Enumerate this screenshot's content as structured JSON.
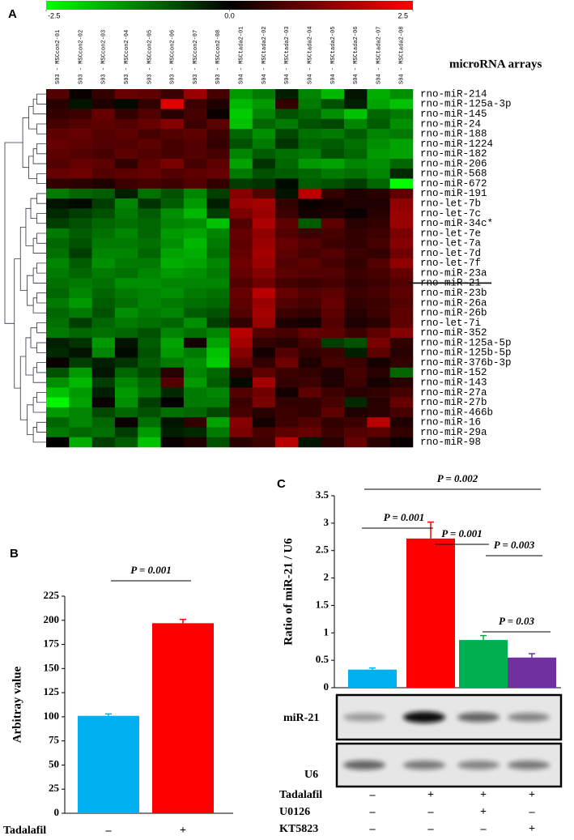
{
  "chart_data": [
    {
      "type": "heatmap",
      "panel": "A",
      "title": "microRNA arrays",
      "clim": [
        -2.5,
        2.5
      ],
      "cticks": [
        -2.5,
        {
          "value": 0,
          "label": "0.0"
        },
        2.5
      ],
      "colormap": [
        "#00ff00",
        "#000000",
        "#ff0000"
      ],
      "columns": [
        "S03 - MSCcon2-01",
        "S03 - MSCcon2-02",
        "S03 - MSCcon2-03",
        "S03 - MSCcon2-04",
        "S03 - MSCcon2-05",
        "S03 - MSCcon2-06",
        "S03 - MSCcon2-07",
        "S03 - MSCcon2-08",
        "S04 - MSCtada2-01",
        "S04 - MSCtada2-02",
        "S04 - MSCtada2-03",
        "S04 - MSCtada2-04",
        "S04 - MSCtada2-05",
        "S04 - MSCtada2-06",
        "S04 - MSCtada2-07",
        "S04 - MSCtada2-08"
      ],
      "rows": [
        "rno-miR-214",
        "rno-miR-125a-3p",
        "rno-miR-145",
        "rno-miR-24",
        "rno-miR-188",
        "rno-miR-1224",
        "rno-miR-182",
        "rno-miR-206",
        "rno-miR-568",
        "rno-miR-672",
        "rno-miR-191",
        "rno-let-7b",
        "rno-let-7c",
        "rno-miR-34c*",
        "rno-let-7e",
        "rno-let-7a",
        "rno-let-7d",
        "rno-let-7f",
        "rno-miR-23a",
        "rno-miR-21",
        "rno-miR-23b",
        "rno-miR-26a",
        "rno-miR-26b",
        "rno-let-7i",
        "rno-miR-352",
        "rno-miR-125a-5p",
        "rno-miR-125b-5p",
        "rno-miR-376b-3p",
        "rno-miR-152",
        "rno-miR-143",
        "rno-miR-27a",
        "rno-miR-27b",
        "rno-miR-466b",
        "rno-miR-16",
        "rno-miR-29a",
        "rno-miR-98"
      ],
      "values": [
        [
          0.8,
          0.1,
          0.5,
          1.0,
          0.9,
          0.6,
          1.5,
          0.7,
          -1.5,
          -1.2,
          -0.3,
          -1.3,
          -1.8,
          -0.2,
          -1.7,
          -1.4
        ],
        [
          0.4,
          -0.2,
          0.3,
          -0.1,
          0.5,
          2.2,
          0.6,
          0.3,
          -1.8,
          -1.5,
          0.5,
          -1.2,
          -0.8,
          -0.3,
          -1.6,
          -1.9
        ],
        [
          0.5,
          0.6,
          1.0,
          0.5,
          0.8,
          0.4,
          0.7,
          0.1,
          -2.0,
          -1.3,
          -0.8,
          -1.0,
          -1.4,
          -1.9,
          -1.0,
          -1.2
        ],
        [
          0.7,
          0.8,
          0.9,
          0.8,
          1.0,
          1.3,
          0.6,
          0.9,
          -1.9,
          -1.0,
          -1.2,
          -0.8,
          -0.7,
          -1.3,
          -0.9,
          -1.4
        ],
        [
          0.9,
          1.0,
          0.8,
          0.9,
          0.7,
          0.8,
          0.9,
          0.6,
          -1.0,
          -1.4,
          -0.7,
          -1.1,
          -1.2,
          -0.9,
          -1.3,
          -1.2
        ],
        [
          1.0,
          0.9,
          0.8,
          0.8,
          0.9,
          0.7,
          0.8,
          0.5,
          -0.8,
          -1.2,
          -0.5,
          -1.0,
          -0.9,
          -1.1,
          -1.4,
          -1.6
        ],
        [
          0.9,
          0.8,
          0.7,
          0.9,
          0.8,
          0.7,
          0.8,
          0.7,
          -1.3,
          -0.9,
          -1.1,
          -1.2,
          -0.8,
          -1.0,
          -1.5,
          -1.6
        ],
        [
          0.8,
          1.0,
          0.9,
          0.5,
          0.9,
          1.2,
          0.7,
          0.9,
          -1.6,
          -0.5,
          -1.0,
          -1.5,
          -1.6,
          -1.3,
          -1.4,
          -1.0
        ],
        [
          1.0,
          1.1,
          0.8,
          0.9,
          1.0,
          0.8,
          0.9,
          1.0,
          -1.2,
          -0.8,
          -0.9,
          -1.0,
          -1.2,
          -1.1,
          -1.3,
          -0.4
        ],
        [
          0.5,
          0.4,
          0.3,
          0.6,
          0.7,
          0.6,
          0.8,
          0.5,
          -0.6,
          -0.5,
          -0.1,
          -0.9,
          -0.8,
          -0.6,
          -1.0,
          -2.5
        ],
        [
          -1.2,
          -1.0,
          -0.9,
          -0.3,
          -1.1,
          -0.8,
          -1.3,
          -0.6,
          1.3,
          0.8,
          -0.2,
          1.8,
          0.5,
          0.3,
          0.4,
          0.9
        ],
        [
          -0.2,
          -0.1,
          -0.6,
          -1.3,
          -0.5,
          -0.9,
          -1.5,
          -0.3,
          1.5,
          1.6,
          0.5,
          0.1,
          0.2,
          0.3,
          0.3,
          1.4
        ],
        [
          -0.4,
          -0.6,
          -0.8,
          -1.2,
          -0.9,
          -1.4,
          -1.8,
          -0.6,
          1.2,
          1.5,
          0.6,
          0.2,
          0.3,
          0.1,
          0.4,
          1.5
        ],
        [
          -0.6,
          -0.8,
          -1.0,
          -1.1,
          -1.0,
          -1.3,
          -1.4,
          -1.9,
          0.8,
          1.7,
          0.9,
          -0.9,
          0.9,
          0.4,
          0.5,
          1.5
        ],
        [
          -1.2,
          -0.9,
          -1.1,
          -1.3,
          -1.0,
          -1.5,
          -1.6,
          -1.3,
          1.0,
          1.4,
          0.8,
          0.6,
          0.7,
          0.5,
          0.6,
          1.2
        ],
        [
          -1.0,
          -0.8,
          -1.2,
          -1.2,
          -1.1,
          -1.4,
          -1.8,
          -1.2,
          0.9,
          1.5,
          1.0,
          0.8,
          0.6,
          0.5,
          0.7,
          1.3
        ],
        [
          -1.1,
          -0.6,
          -1.3,
          -1.3,
          -1.0,
          -1.6,
          -1.7,
          -1.1,
          1.0,
          1.6,
          0.9,
          0.7,
          0.8,
          0.6,
          0.5,
          1.1
        ],
        [
          -1.3,
          -0.9,
          -1.4,
          -1.2,
          -1.2,
          -1.7,
          -1.6,
          -1.3,
          1.1,
          1.5,
          0.8,
          0.9,
          0.7,
          0.5,
          0.8,
          1.4
        ],
        [
          -1.2,
          -1.0,
          -1.2,
          -1.1,
          -1.3,
          -1.5,
          -1.4,
          -1.2,
          1.0,
          1.3,
          0.9,
          0.8,
          0.8,
          0.6,
          0.7,
          1.0
        ],
        [
          -1.1,
          -1.2,
          -1.1,
          -1.4,
          -1.4,
          -1.3,
          -1.3,
          -1.3,
          0.8,
          1.1,
          0.7,
          0.6,
          0.7,
          0.5,
          0.6,
          0.8
        ],
        [
          -1.0,
          -1.3,
          -1.0,
          -1.2,
          -1.3,
          -1.4,
          -1.2,
          -1.1,
          1.0,
          1.8,
          1.0,
          0.8,
          0.9,
          0.6,
          0.7,
          0.9
        ],
        [
          -1.2,
          -1.5,
          -0.9,
          -1.1,
          -1.3,
          -1.2,
          -1.1,
          -1.0,
          0.9,
          1.5,
          0.8,
          0.7,
          1.0,
          0.5,
          0.6,
          0.8
        ],
        [
          -1.0,
          -1.2,
          -0.8,
          -1.4,
          -1.2,
          -1.3,
          -0.9,
          -0.8,
          0.8,
          1.6,
          0.6,
          0.5,
          0.9,
          0.4,
          0.6,
          0.9
        ],
        [
          -1.1,
          -0.6,
          -1.0,
          -1.2,
          -1.1,
          -1.0,
          -1.4,
          -0.6,
          0.5,
          1.5,
          0.3,
          0.2,
          0.8,
          0.3,
          0.4,
          0.9
        ],
        [
          -1.2,
          -1.0,
          -1.1,
          -1.0,
          -0.8,
          -1.3,
          -1.1,
          -1.3,
          1.8,
          0.8,
          0.7,
          1.0,
          0.9,
          0.6,
          0.9,
          1.3
        ],
        [
          -0.3,
          -0.5,
          -1.5,
          -0.2,
          -0.9,
          -1.6,
          0.2,
          -1.6,
          1.6,
          0.5,
          0.4,
          0.7,
          -0.6,
          -0.8,
          1.2,
          0.5
        ],
        [
          -0.4,
          -0.2,
          -1.3,
          -0.1,
          -0.8,
          -1.5,
          -1.2,
          -1.9,
          1.3,
          0.2,
          0.8,
          0.5,
          0.6,
          -0.3,
          0.9,
          0.4
        ],
        [
          0.1,
          -0.6,
          -0.3,
          -0.5,
          -0.9,
          -1.2,
          -1.4,
          -2.0,
          1.0,
          0.5,
          1.1,
          0.3,
          0.7,
          0.6,
          0.2,
          0.5
        ],
        [
          -0.8,
          -1.5,
          -0.2,
          -1.0,
          -0.7,
          0.4,
          -1.3,
          -1.0,
          0.4,
          0.9,
          0.6,
          0.5,
          0.3,
          0.7,
          0.4,
          -1.0
        ],
        [
          -1.4,
          -1.8,
          -0.6,
          -1.3,
          -1.0,
          0.8,
          -1.5,
          -0.9,
          -0.1,
          1.6,
          0.5,
          0.6,
          0.3,
          0.6,
          0.2,
          0.4
        ],
        [
          -1.9,
          -1.5,
          -0.3,
          -1.5,
          -1.1,
          -0.4,
          -1.2,
          -1.3,
          0.8,
          1.1,
          0.2,
          0.9,
          0.6,
          0.4,
          0.5,
          0.7
        ],
        [
          -2.4,
          -1.6,
          0.1,
          -1.4,
          -0.6,
          0.0,
          -1.2,
          -1.2,
          0.6,
          1.2,
          0.5,
          0.5,
          0.7,
          -0.4,
          0.4,
          1.0
        ],
        [
          -1.5,
          -1.3,
          -0.7,
          -1.0,
          -0.8,
          -1.1,
          -1.0,
          -0.7,
          0.7,
          0.4,
          0.6,
          0.5,
          0.9,
          0.3,
          0.4,
          0.7
        ],
        [
          -1.0,
          -1.3,
          -1.0,
          0.1,
          -1.1,
          -0.2,
          0.5,
          -1.6,
          1.3,
          0.2,
          0.6,
          0.8,
          0.5,
          0.6,
          1.8,
          0.3
        ],
        [
          -1.2,
          -1.0,
          -1.1,
          -0.6,
          -1.5,
          -0.3,
          -0.4,
          -1.2,
          1.2,
          0.7,
          0.9,
          1.0,
          0.6,
          0.8,
          0.9,
          0.5
        ],
        [
          0.0,
          -1.7,
          -0.6,
          -0.9,
          -1.9,
          0.1,
          0.3,
          -0.8,
          0.4,
          0.6,
          1.8,
          -0.2,
          0.4,
          1.0,
          0.4,
          0.1
        ]
      ]
    },
    {
      "type": "bar",
      "panel": "B",
      "ylabel": "Arbitray value",
      "xlabel": "Tadalafil",
      "categories": [
        "–",
        "+"
      ],
      "values": [
        101,
        197
      ],
      "errors": [
        2,
        4
      ],
      "colors": [
        "#00b0f0",
        "#ff0000"
      ],
      "ylim": [
        0,
        225
      ],
      "yticks": [
        0,
        25,
        50,
        75,
        100,
        125,
        150,
        175,
        200,
        225
      ],
      "annotations": [
        "P = 0.001"
      ]
    },
    {
      "type": "bar",
      "panel": "C",
      "ylabel": "Ratio of miR-21 / U6",
      "values": [
        0.33,
        2.72,
        0.87,
        0.55
      ],
      "errors": [
        0.03,
        0.3,
        0.08,
        0.07
      ],
      "colors": [
        "#00b0f0",
        "#ff0000",
        "#00b050",
        "#7030a0"
      ],
      "ylim": [
        0,
        3.5
      ],
      "yticks": [
        0,
        0.5,
        1,
        1.5,
        2,
        2.5,
        3,
        3.5
      ],
      "annotations": [
        "P = 0.002",
        "P = 0.001",
        "P = 0.001",
        "P = 0.003",
        "P = 0.03"
      ],
      "blots": [
        "miR-21",
        "U6"
      ],
      "treatments": [
        {
          "name": "Tadalafil",
          "values": [
            "–",
            "+",
            "+",
            "+"
          ]
        },
        {
          "name": "U0126",
          "values": [
            "–",
            "–",
            "+",
            "–"
          ]
        },
        {
          "name": "KT5823",
          "values": [
            "–",
            "–",
            "–",
            "+"
          ]
        }
      ]
    }
  ]
}
